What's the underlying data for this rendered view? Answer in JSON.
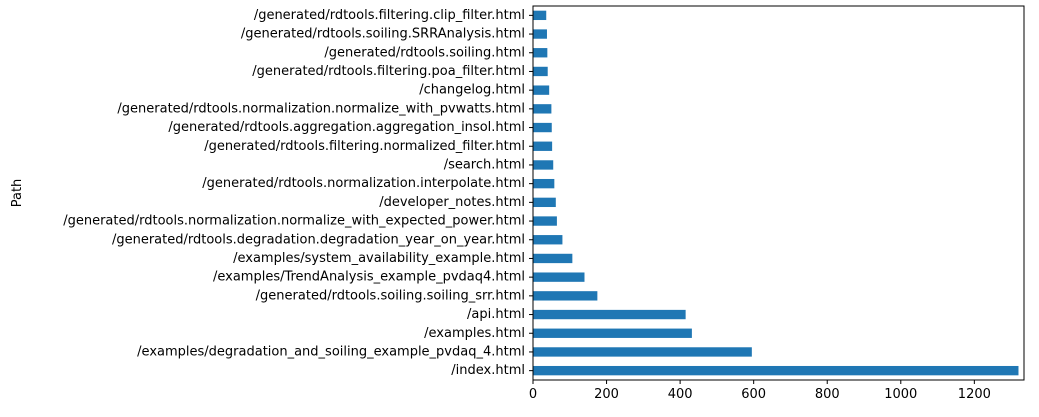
{
  "chart_data": {
    "type": "bar",
    "orientation": "horizontal",
    "title": "",
    "xlabel": "",
    "ylabel": "Path",
    "xlim": [
      0,
      1335
    ],
    "xticks": [
      0,
      200,
      400,
      600,
      800,
      1000,
      1200
    ],
    "grid": false,
    "legend": "none",
    "bar_color": "#1f77b4",
    "categories": [
      "/index.html",
      "/examples/degradation_and_soiling_example_pvdaq_4.html",
      "/examples.html",
      "/api.html",
      "/generated/rdtools.soiling.soiling_srr.html",
      "/examples/TrendAnalysis_example_pvdaq4.html",
      "/examples/system_availability_example.html",
      "/generated/rdtools.degradation.degradation_year_on_year.html",
      "/generated/rdtools.normalization.normalize_with_expected_power.html",
      "/developer_notes.html",
      "/generated/rdtools.normalization.interpolate.html",
      "/search.html",
      "/generated/rdtools.filtering.normalized_filter.html",
      "/generated/rdtools.aggregation.aggregation_insol.html",
      "/generated/rdtools.normalization.normalize_with_pvwatts.html",
      "/changelog.html",
      "/generated/rdtools.filtering.poa_filter.html",
      "/generated/rdtools.soiling.html",
      "/generated/rdtools.soiling.SRRAnalysis.html",
      "/generated/rdtools.filtering.clip_filter.html"
    ],
    "values": [
      1320,
      595,
      432,
      415,
      175,
      140,
      107,
      80,
      65,
      62,
      58,
      55,
      52,
      51,
      50,
      44,
      40,
      39,
      38,
      36
    ]
  }
}
